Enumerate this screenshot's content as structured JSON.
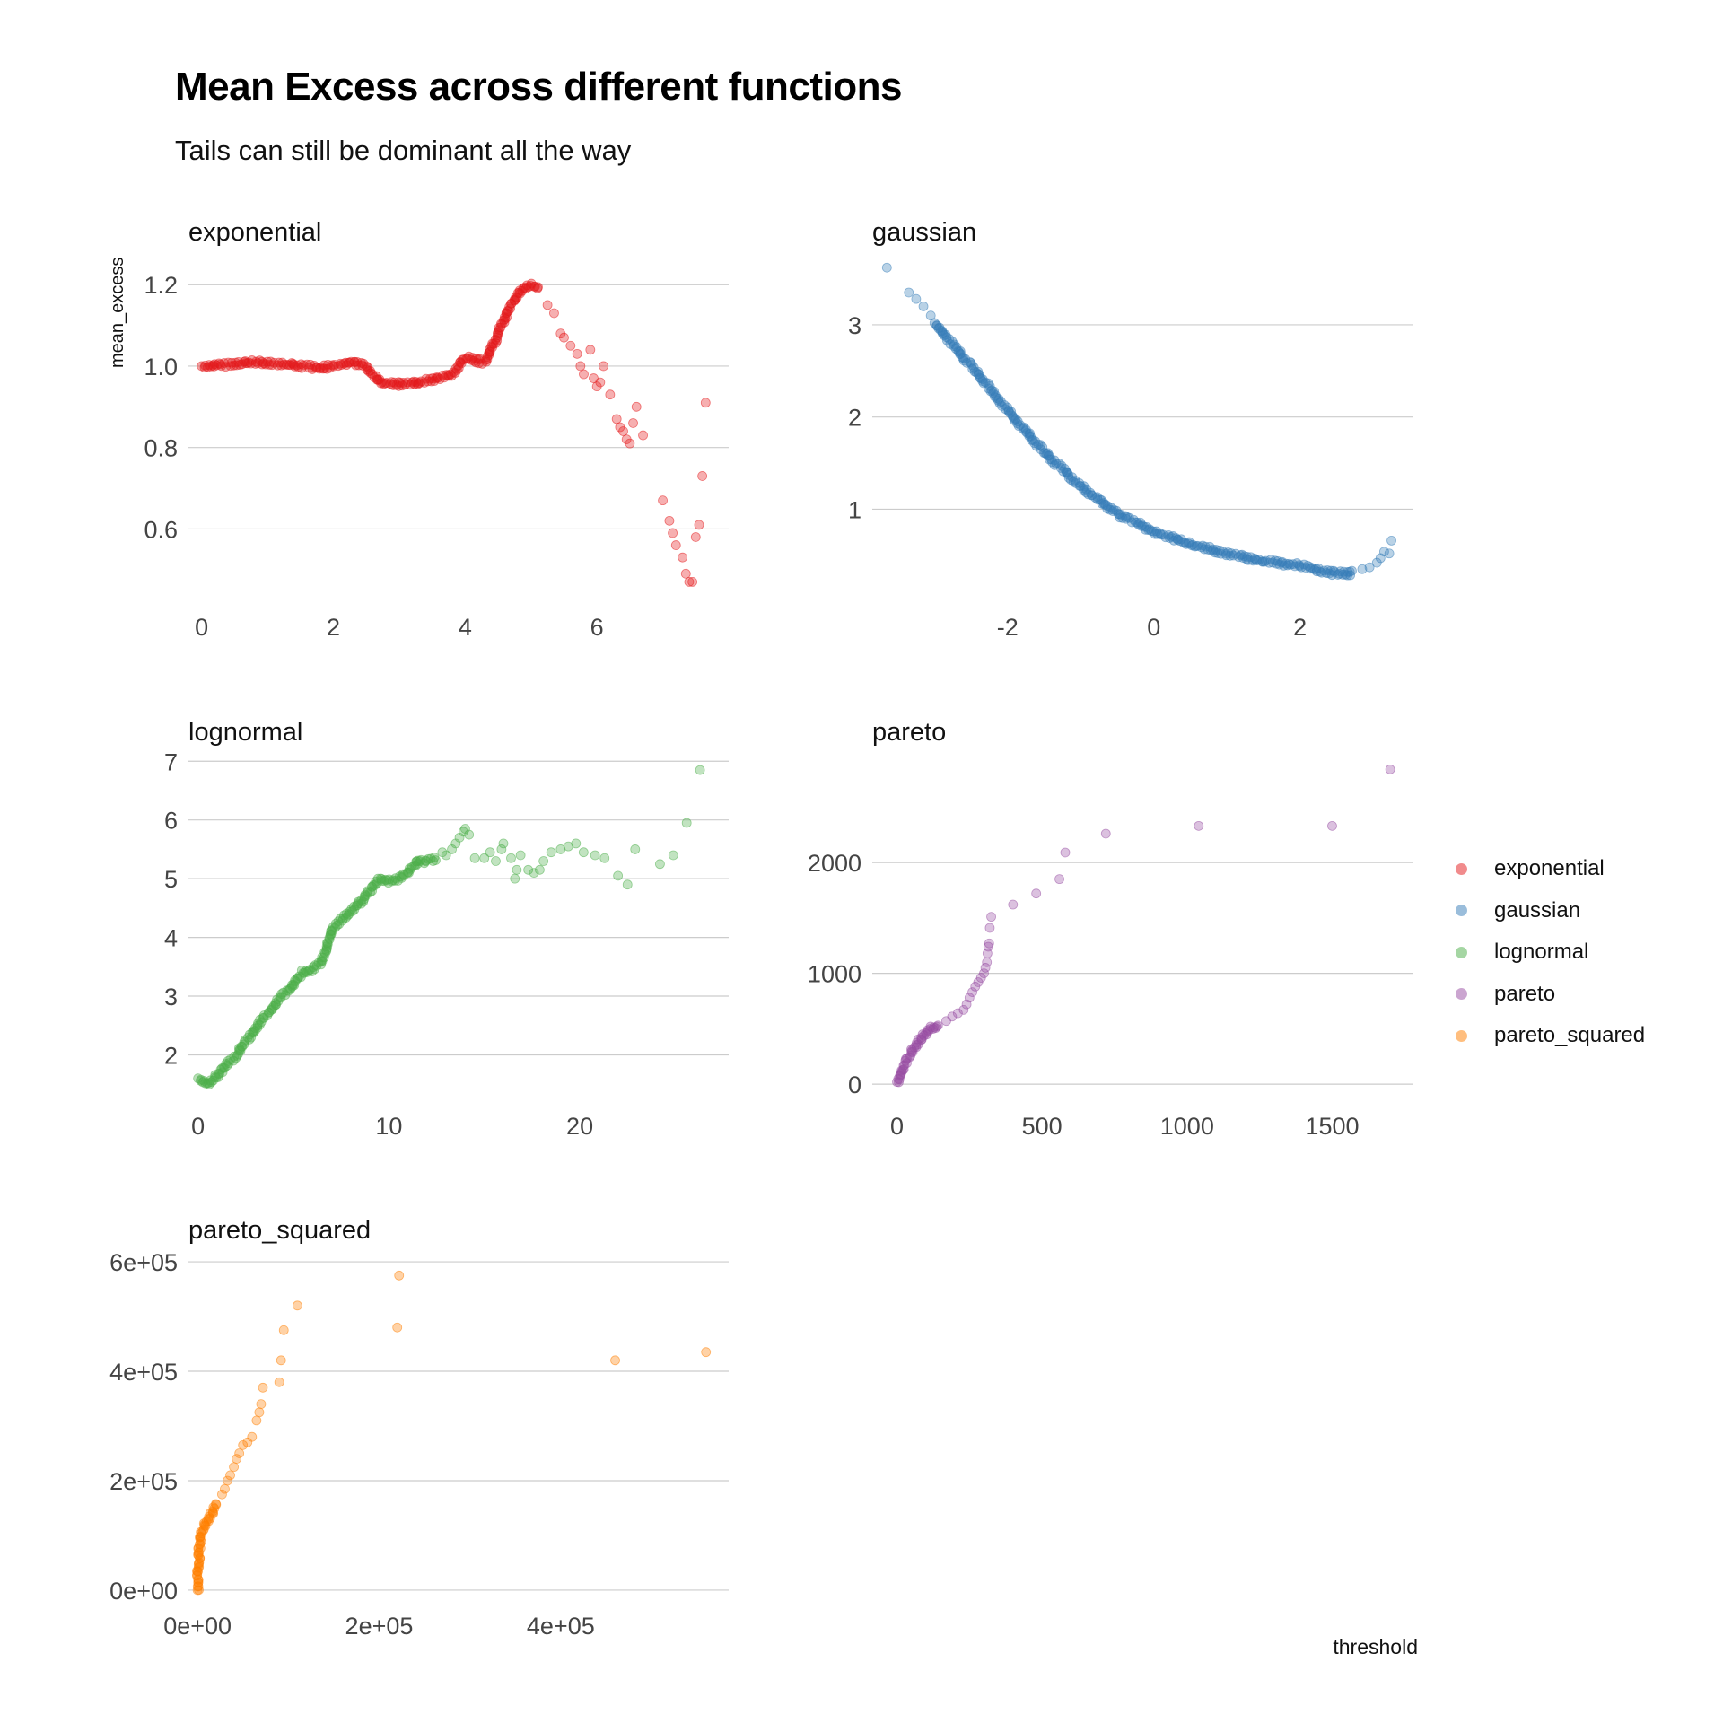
{
  "title": "Mean Excess across different functions",
  "subtitle": "Tails can still be dominant all the way",
  "xlabel": "threshold",
  "ylabel": "mean_excess",
  "legend": {
    "placement": "right",
    "items": [
      {
        "label": "exponential",
        "color": "#E41A1C"
      },
      {
        "label": "gaussian",
        "color": "#377EB8"
      },
      {
        "label": "lognormal",
        "color": "#4DAF4A"
      },
      {
        "label": "pareto",
        "color": "#984EA3"
      },
      {
        "label": "pareto_squared",
        "color": "#FF7F00"
      }
    ]
  },
  "chart_data": [
    {
      "type": "scatter",
      "panel": "exponential",
      "color": "#E41A1C",
      "xlim": [
        -0.2,
        8.0
      ],
      "ylim": [
        0.44,
        1.26
      ],
      "xticks": [
        0,
        2,
        4,
        6
      ],
      "xtick_labels": [
        "0",
        "2",
        "4",
        "6"
      ],
      "yticks": [
        0.6,
        0.8,
        1.0,
        1.2
      ],
      "ytick_labels": [
        "0.6",
        "0.8",
        "1.0",
        "1.2"
      ],
      "dense": [
        [
          0,
          1.0
        ],
        [
          0.5,
          1.005
        ],
        [
          0.8,
          1.01
        ],
        [
          1.3,
          1.005
        ],
        [
          1.8,
          0.995
        ],
        [
          2.3,
          1.01
        ],
        [
          2.5,
          1.0
        ],
        [
          2.7,
          0.96
        ],
        [
          3.0,
          0.955
        ],
        [
          3.3,
          0.96
        ],
        [
          3.6,
          0.97
        ],
        [
          3.8,
          0.98
        ],
        [
          4.0,
          1.02
        ],
        [
          4.3,
          1.01
        ],
        [
          4.45,
          1.06
        ],
        [
          4.6,
          1.12
        ],
        [
          4.8,
          1.18
        ],
        [
          5.0,
          1.2
        ],
        [
          5.15,
          1.19
        ]
      ],
      "points": [
        [
          5.25,
          1.15
        ],
        [
          5.35,
          1.13
        ],
        [
          5.45,
          1.08
        ],
        [
          5.5,
          1.07
        ],
        [
          5.6,
          1.05
        ],
        [
          5.7,
          1.03
        ],
        [
          5.75,
          1.0
        ],
        [
          5.8,
          0.98
        ],
        [
          5.9,
          1.04
        ],
        [
          5.95,
          0.97
        ],
        [
          6.0,
          0.95
        ],
        [
          6.05,
          0.96
        ],
        [
          6.1,
          1.0
        ],
        [
          6.2,
          0.93
        ],
        [
          6.3,
          0.87
        ],
        [
          6.35,
          0.85
        ],
        [
          6.4,
          0.84
        ],
        [
          6.45,
          0.82
        ],
        [
          6.5,
          0.81
        ],
        [
          6.55,
          0.86
        ],
        [
          6.6,
          0.9
        ],
        [
          6.7,
          0.83
        ],
        [
          7.0,
          0.67
        ],
        [
          7.1,
          0.62
        ],
        [
          7.15,
          0.59
        ],
        [
          7.2,
          0.56
        ],
        [
          7.3,
          0.53
        ],
        [
          7.35,
          0.49
        ],
        [
          7.4,
          0.47
        ],
        [
          7.45,
          0.47
        ],
        [
          7.5,
          0.58
        ],
        [
          7.55,
          0.61
        ],
        [
          7.6,
          0.73
        ],
        [
          7.65,
          0.91
        ]
      ]
    },
    {
      "type": "scatter",
      "panel": "gaussian",
      "color": "#377EB8",
      "xlim": [
        -3.85,
        3.55
      ],
      "ylim": [
        0.08,
        3.7
      ],
      "xticks": [
        -2,
        0,
        2
      ],
      "xtick_labels": [
        "-2",
        "0",
        "2"
      ],
      "yticks": [
        1,
        2,
        3
      ],
      "ytick_labels": [
        "1",
        "2",
        "3"
      ],
      "dense": [
        [
          -3.0,
          3.02
        ],
        [
          -2.5,
          2.55
        ],
        [
          -2.0,
          2.08
        ],
        [
          -1.5,
          1.62
        ],
        [
          -1.0,
          1.25
        ],
        [
          -0.5,
          0.95
        ],
        [
          0.0,
          0.76
        ],
        [
          0.5,
          0.62
        ],
        [
          1.0,
          0.52
        ],
        [
          1.5,
          0.44
        ],
        [
          2.0,
          0.39
        ],
        [
          2.3,
          0.33
        ],
        [
          2.5,
          0.3
        ],
        [
          2.75,
          0.31
        ]
      ],
      "points": [
        [
          -3.65,
          3.62
        ],
        [
          -3.35,
          3.35
        ],
        [
          -3.25,
          3.28
        ],
        [
          -3.15,
          3.2
        ],
        [
          -3.05,
          3.1
        ],
        [
          2.85,
          0.35
        ],
        [
          2.95,
          0.37
        ],
        [
          3.05,
          0.42
        ],
        [
          3.1,
          0.47
        ],
        [
          3.15,
          0.54
        ],
        [
          3.22,
          0.52
        ],
        [
          3.25,
          0.66
        ]
      ]
    },
    {
      "type": "scatter",
      "panel": "lognormal",
      "color": "#4DAF4A",
      "xlim": [
        -0.5,
        27.8
      ],
      "ylim": [
        1.35,
        7.05
      ],
      "xticks": [
        0,
        10,
        20
      ],
      "xtick_labels": [
        "0",
        "10",
        "20"
      ],
      "yticks": [
        2,
        3,
        4,
        5,
        6,
        7
      ],
      "ytick_labels": [
        "2",
        "3",
        "4",
        "5",
        "6",
        "7"
      ],
      "dense": [
        [
          0,
          1.6
        ],
        [
          0.5,
          1.5
        ],
        [
          1.0,
          1.65
        ],
        [
          2.0,
          2.0
        ],
        [
          3.0,
          2.45
        ],
        [
          4.0,
          2.85
        ],
        [
          5.0,
          3.2
        ],
        [
          5.5,
          3.4
        ],
        [
          6.0,
          3.45
        ],
        [
          6.5,
          3.6
        ],
        [
          6.8,
          3.9
        ],
        [
          7.0,
          4.15
        ],
        [
          7.5,
          4.3
        ],
        [
          8.0,
          4.45
        ],
        [
          8.5,
          4.6
        ],
        [
          9.0,
          4.8
        ],
        [
          9.5,
          5.0
        ],
        [
          10.0,
          4.95
        ],
        [
          10.5,
          5.0
        ],
        [
          11.0,
          5.1
        ],
        [
          11.5,
          5.3
        ],
        [
          12.0,
          5.3
        ],
        [
          12.5,
          5.35
        ]
      ],
      "points": [
        [
          12.8,
          5.45
        ],
        [
          13.0,
          5.4
        ],
        [
          13.3,
          5.5
        ],
        [
          13.5,
          5.6
        ],
        [
          13.7,
          5.7
        ],
        [
          13.9,
          5.8
        ],
        [
          14.0,
          5.85
        ],
        [
          14.2,
          5.75
        ],
        [
          14.5,
          5.35
        ],
        [
          15.0,
          5.35
        ],
        [
          15.3,
          5.45
        ],
        [
          15.6,
          5.3
        ],
        [
          15.9,
          5.5
        ],
        [
          16.0,
          5.6
        ],
        [
          16.4,
          5.35
        ],
        [
          16.6,
          5.0
        ],
        [
          16.7,
          5.15
        ],
        [
          16.9,
          5.4
        ],
        [
          17.3,
          5.15
        ],
        [
          17.6,
          5.1
        ],
        [
          17.9,
          5.15
        ],
        [
          18.1,
          5.3
        ],
        [
          18.5,
          5.45
        ],
        [
          19.0,
          5.5
        ],
        [
          19.4,
          5.55
        ],
        [
          19.8,
          5.6
        ],
        [
          20.2,
          5.45
        ],
        [
          20.8,
          5.4
        ],
        [
          21.3,
          5.35
        ],
        [
          22.0,
          5.05
        ],
        [
          22.5,
          4.9
        ],
        [
          22.9,
          5.5
        ],
        [
          24.2,
          5.25
        ],
        [
          24.9,
          5.4
        ],
        [
          25.6,
          5.95
        ],
        [
          26.3,
          6.85
        ]
      ]
    },
    {
      "type": "scatter",
      "panel": "pareto",
      "color": "#984EA3",
      "xlim": [
        -85,
        1780
      ],
      "ylim": [
        -80,
        2940
      ],
      "xticks": [
        0,
        500,
        1000,
        1500
      ],
      "xtick_labels": [
        "0",
        "500",
        "1000",
        "1500"
      ],
      "yticks": [
        0,
        1000,
        2000
      ],
      "ytick_labels": [
        "0",
        "1000",
        "2000"
      ],
      "dense": [
        [
          0,
          20
        ],
        [
          10,
          80
        ],
        [
          20,
          150
        ],
        [
          40,
          250
        ],
        [
          60,
          330
        ],
        [
          80,
          400
        ],
        [
          100,
          460
        ],
        [
          120,
          500
        ],
        [
          150,
          530
        ]
      ],
      "points": [
        [
          170,
          570
        ],
        [
          190,
          610
        ],
        [
          210,
          640
        ],
        [
          230,
          670
        ],
        [
          240,
          720
        ],
        [
          250,
          780
        ],
        [
          260,
          830
        ],
        [
          270,
          880
        ],
        [
          280,
          920
        ],
        [
          290,
          960
        ],
        [
          300,
          1000
        ],
        [
          305,
          1050
        ],
        [
          310,
          1100
        ],
        [
          312,
          1180
        ],
        [
          315,
          1240
        ],
        [
          318,
          1270
        ],
        [
          320,
          1410
        ],
        [
          325,
          1510
        ],
        [
          400,
          1620
        ],
        [
          480,
          1720
        ],
        [
          560,
          1850
        ],
        [
          580,
          2090
        ],
        [
          720,
          2260
        ],
        [
          1040,
          2330
        ],
        [
          1500,
          2330
        ],
        [
          1700,
          2840
        ]
      ]
    },
    {
      "type": "scatter",
      "panel": "pareto_squared",
      "color": "#FF7F00",
      "xlim": [
        -10000,
        585000
      ],
      "ylim": [
        -5000,
        605000
      ],
      "xticks": [
        0,
        200000,
        400000
      ],
      "xtick_labels": [
        "0e+00",
        "2e+05",
        "4e+05"
      ],
      "yticks": [
        0,
        200000,
        400000,
        600000
      ],
      "ytick_labels": [
        "0e+00",
        "2e+05",
        "4e+05",
        "6e+05"
      ],
      "dense": [
        [
          0,
          0
        ],
        [
          500,
          40000
        ],
        [
          2000,
          80000
        ],
        [
          5000,
          110000
        ],
        [
          10000,
          125000
        ],
        [
          16000,
          140000
        ],
        [
          22000,
          160000
        ]
      ],
      "points": [
        [
          27000,
          175000
        ],
        [
          30000,
          185000
        ],
        [
          33000,
          200000
        ],
        [
          36000,
          210000
        ],
        [
          40000,
          225000
        ],
        [
          43000,
          240000
        ],
        [
          46000,
          250000
        ],
        [
          50000,
          265000
        ],
        [
          55000,
          270000
        ],
        [
          60000,
          280000
        ],
        [
          65000,
          310000
        ],
        [
          68000,
          325000
        ],
        [
          70000,
          340000
        ],
        [
          72000,
          370000
        ],
        [
          90000,
          380000
        ],
        [
          92000,
          420000
        ],
        [
          95000,
          475000
        ],
        [
          110000,
          520000
        ],
        [
          220000,
          480000
        ],
        [
          222000,
          575000
        ],
        [
          460000,
          420000
        ],
        [
          560000,
          435000
        ]
      ]
    }
  ]
}
